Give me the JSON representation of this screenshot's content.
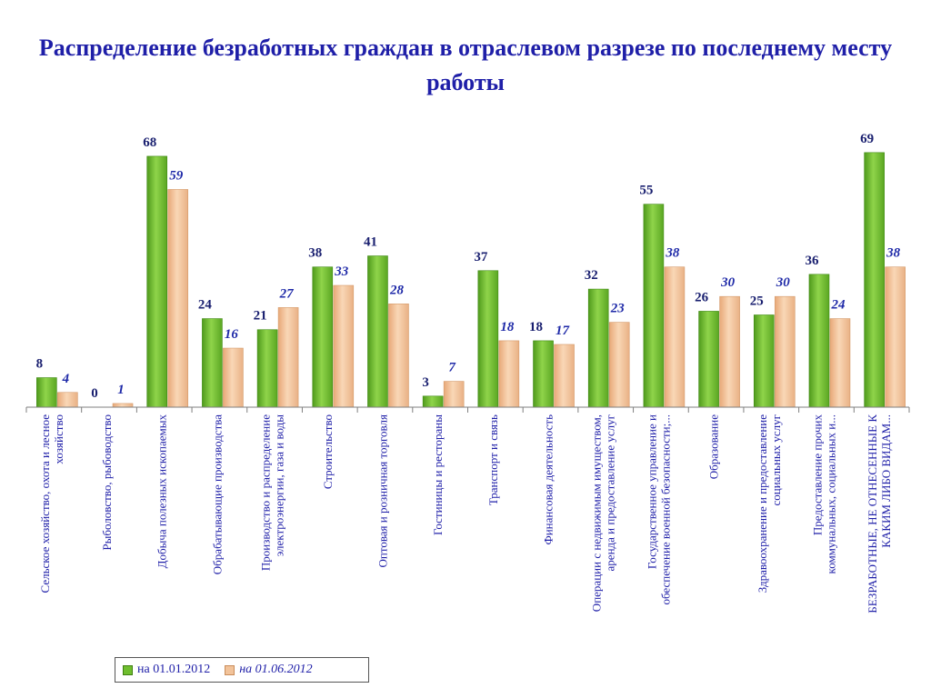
{
  "page": {
    "title": "Распределение безработных граждан в отраслевом разрезе по последнему месту работы"
  },
  "colors": {
    "series_a": "#6fbe2e",
    "series_a_dark": "#3f8a14",
    "series_b": "#f2c39a",
    "series_b_dark": "#d49a6a",
    "axis": "#7f7f7f",
    "label_text": "#1f1fa8"
  },
  "legend": {
    "placement": "bottom-left"
  },
  "chart_data": {
    "type": "bar",
    "title": "Распределение безработных граждан в отраслевом разрезе по последнему месту работы",
    "ylim": [
      0,
      80
    ],
    "grid": false,
    "categories": [
      [
        "Сельское хозяйство, охота и лесное",
        "хозяйство"
      ],
      [
        "Рыболовство, рыбоводство"
      ],
      [
        "Добыча полезных ископаемых"
      ],
      [
        "Обрабатывающие производства"
      ],
      [
        "Производство и распределение",
        "электроэнергии, газа и воды"
      ],
      [
        "Строительство"
      ],
      [
        "Оптовая и розничная торговля"
      ],
      [
        "Гостиницы и рестораны"
      ],
      [
        "Транспорт и связь"
      ],
      [
        "Финансовая деятельность"
      ],
      [
        "Операции с недвижимым имуществом,",
        "аренда и предоставление услуг"
      ],
      [
        "Государственное управление и",
        "обеспечение военной безопасности;..."
      ],
      [
        "Образование"
      ],
      [
        "Здравоохранение и предоставление",
        "социальных услуг"
      ],
      [
        "Предоставление прочих",
        "коммунальных, социальных и..."
      ],
      [
        "БЕЗРАБОТНЫЕ, НЕ ОТНЕСЕННЫЕ К",
        "КАКИМ ЛИБО ВИДАМ..."
      ]
    ],
    "series": [
      {
        "name": "на 01.01.2012",
        "values": [
          8,
          0,
          68,
          24,
          21,
          38,
          41,
          3,
          37,
          18,
          32,
          55,
          26,
          25,
          36,
          69
        ]
      },
      {
        "name": "на 01.06.2012",
        "values": [
          4,
          1,
          59,
          16,
          27,
          33,
          28,
          7,
          18,
          17,
          23,
          38,
          30,
          30,
          24,
          38
        ]
      }
    ]
  }
}
